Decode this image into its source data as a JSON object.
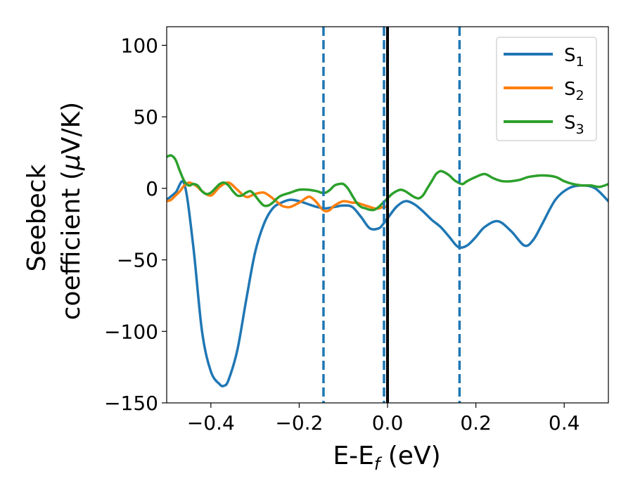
{
  "chart_data": {
    "type": "line",
    "title": "",
    "xlabel": "E-E",
    "xlabel_sub": "f",
    "xlabel_unit": " (eV)",
    "ylabel_line1": "Seebeck",
    "ylabel_line2_pre": "coefficient  (",
    "ylabel_mu": "μ",
    "ylabel_line2_post": "V/K)",
    "xlim": [
      -0.5,
      0.5
    ],
    "ylim": [
      -150,
      113
    ],
    "xticks": [
      -0.4,
      -0.2,
      0.0,
      0.2,
      0.4
    ],
    "xtick_labels": [
      "−0.4",
      "−0.2",
      "0.0",
      "0.2",
      "0.4"
    ],
    "yticks": [
      -150,
      -100,
      -50,
      0,
      50,
      100
    ],
    "ytick_labels": [
      "−150",
      "−100",
      "−50",
      "0",
      "50",
      "100"
    ],
    "grid": false,
    "legend_position": "top-right",
    "vlines": [
      {
        "x": -0.145,
        "style": "dashed",
        "color": "#1f77b4"
      },
      {
        "x": -0.008,
        "style": "dashed",
        "color": "#1f77b4"
      },
      {
        "x": 0.163,
        "style": "dashed",
        "color": "#1f77b4"
      },
      {
        "x": 0.0,
        "style": "solid",
        "color": "#000000"
      }
    ],
    "series": [
      {
        "name": "S",
        "sub": "1",
        "color": "#1f77b4",
        "x": [
          -0.5,
          -0.48,
          -0.46,
          -0.44,
          -0.42,
          -0.4,
          -0.38,
          -0.37,
          -0.36,
          -0.34,
          -0.32,
          -0.3,
          -0.28,
          -0.26,
          -0.24,
          -0.22,
          -0.2,
          -0.18,
          -0.16,
          -0.14,
          -0.12,
          -0.1,
          -0.08,
          -0.06,
          -0.04,
          -0.02,
          -0.01,
          0.0,
          0.02,
          0.04,
          0.06,
          0.08,
          0.1,
          0.12,
          0.14,
          0.16,
          0.18,
          0.2,
          0.22,
          0.25,
          0.28,
          0.31,
          0.33,
          0.35,
          0.38,
          0.41,
          0.44,
          0.47,
          0.5
        ],
        "y": [
          -8,
          -3,
          3,
          -40,
          -100,
          -128,
          -137,
          -138,
          -134,
          -113,
          -78,
          -45,
          -25,
          -14,
          -10,
          -8,
          -9,
          -11,
          -13,
          -14,
          -13,
          -12,
          -13,
          -20,
          -28,
          -28,
          -25,
          -21,
          -13,
          -9,
          -11,
          -16,
          -22,
          -27,
          -34,
          -41,
          -40,
          -34,
          -27,
          -23,
          -30,
          -40,
          -36,
          -25,
          -8,
          0,
          2,
          0,
          -9
        ]
      },
      {
        "name": "S",
        "sub": "2",
        "color": "#ff7f0e",
        "x": [
          -0.5,
          -0.49,
          -0.48,
          -0.47,
          -0.46,
          -0.45,
          -0.44,
          -0.43,
          -0.42,
          -0.4,
          -0.38,
          -0.36,
          -0.34,
          -0.32,
          -0.3,
          -0.28,
          -0.26,
          -0.24,
          -0.23,
          -0.22,
          -0.2,
          -0.18,
          -0.17,
          -0.16,
          -0.15,
          -0.14,
          -0.13,
          -0.12,
          -0.1,
          -0.08,
          -0.07,
          -0.06,
          -0.05,
          -0.04,
          -0.03,
          -0.02,
          -0.01,
          0.0
        ],
        "y": [
          -9,
          -8,
          -5,
          -2,
          2,
          4,
          3,
          1,
          -2,
          -5,
          1,
          4,
          -1,
          -6,
          -4,
          -3,
          -7,
          -12,
          -13,
          -13,
          -10,
          -6,
          -7,
          -10,
          -14,
          -16,
          -15,
          -12,
          -9,
          -10,
          -10,
          -11,
          -12,
          -13,
          -14,
          -14,
          -13,
          -13
        ]
      },
      {
        "name": "S",
        "sub": "3",
        "color": "#2ca02c",
        "x": [
          -0.5,
          -0.49,
          -0.48,
          -0.47,
          -0.46,
          -0.45,
          -0.44,
          -0.43,
          -0.42,
          -0.41,
          -0.4,
          -0.39,
          -0.38,
          -0.37,
          -0.36,
          -0.35,
          -0.34,
          -0.33,
          -0.32,
          -0.31,
          -0.3,
          -0.29,
          -0.28,
          -0.27,
          -0.26,
          -0.25,
          -0.24,
          -0.22,
          -0.2,
          -0.18,
          -0.16,
          -0.15,
          -0.14,
          -0.13,
          -0.12,
          -0.11,
          -0.1,
          -0.09,
          -0.08,
          -0.07,
          -0.06,
          -0.05,
          -0.04,
          -0.03,
          -0.02,
          -0.01,
          0.0,
          0.01,
          0.02,
          0.03,
          0.04,
          0.05,
          0.06,
          0.07,
          0.08,
          0.09,
          0.1,
          0.11,
          0.12,
          0.13,
          0.14,
          0.15,
          0.16,
          0.17,
          0.18,
          0.2,
          0.22,
          0.24,
          0.26,
          0.28,
          0.3,
          0.32,
          0.35,
          0.38,
          0.4,
          0.42,
          0.44,
          0.46,
          0.48,
          0.5
        ],
        "y": [
          22,
          23,
          20,
          12,
          5,
          2,
          3,
          2,
          -2,
          -4,
          -3,
          0,
          3,
          4,
          2,
          -2,
          -5,
          -5,
          -3,
          -2,
          -5,
          -9,
          -12,
          -12,
          -10,
          -7,
          -5,
          -3,
          -1,
          -1,
          -2,
          -3,
          -3,
          -1,
          2,
          3,
          3,
          0,
          -5,
          -10,
          -13,
          -14,
          -15,
          -15,
          -13,
          -10,
          -7,
          -4,
          -2,
          -1,
          -2,
          -4,
          -6,
          -7,
          -5,
          0,
          5,
          10,
          12,
          11,
          9,
          6,
          4,
          3,
          5,
          8,
          10,
          7,
          5,
          5,
          6,
          8,
          9,
          8,
          5,
          3,
          2,
          2,
          1,
          3
        ]
      }
    ]
  }
}
